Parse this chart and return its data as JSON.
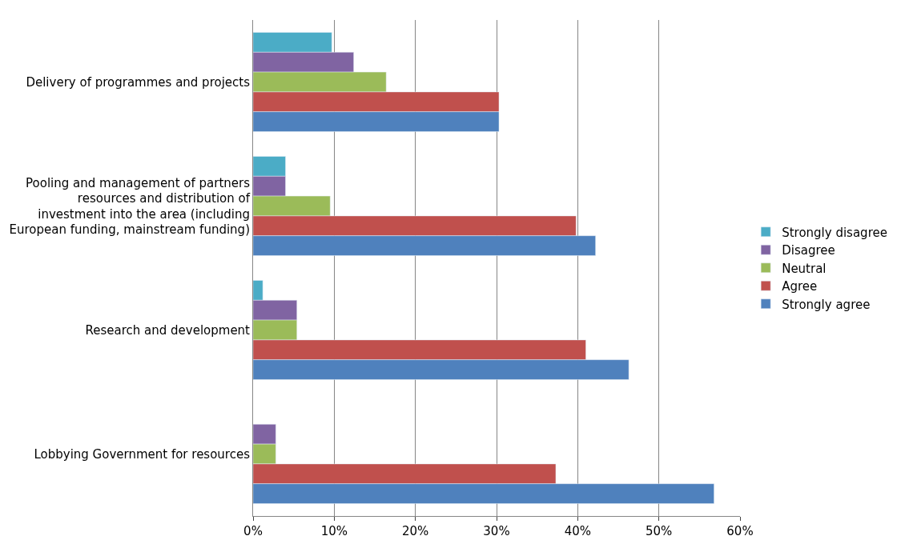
{
  "chart_data": {
    "type": "bar",
    "orientation": "horizontal",
    "categories": [
      "Delivery of programmes and projects",
      "Pooling and management of partners resources and distribution of investment into the area (including European funding, mainstream funding)",
      "Research and development",
      "Lobbying Government for resources"
    ],
    "series": [
      {
        "name": "Strongly disagree",
        "color": "#4bacc6",
        "values": [
          9.7,
          4,
          1.2,
          null
        ]
      },
      {
        "name": "Disagree",
        "color": "#8064a2",
        "values": [
          12.4,
          4,
          5.4,
          2.8
        ]
      },
      {
        "name": "Neutral",
        "color": "#9bbb59",
        "values": [
          16.4,
          9.5,
          5.4,
          2.8
        ]
      },
      {
        "name": "Agree",
        "color": "#c0504d",
        "values": [
          30.3,
          39.8,
          41,
          37.3
        ]
      },
      {
        "name": "Strongly agree",
        "color": "#4f81bd",
        "values": [
          30.3,
          42.2,
          46.3,
          56.8
        ]
      }
    ],
    "xlim": [
      0,
      60
    ],
    "xticks": [
      {
        "value": 0,
        "label": "0%"
      },
      {
        "value": 10,
        "label": "10%"
      },
      {
        "value": 20,
        "label": "20%"
      },
      {
        "value": 30,
        "label": "30%"
      },
      {
        "value": 40,
        "label": "40%"
      },
      {
        "value": 50,
        "label": "50%"
      },
      {
        "value": 60,
        "label": "60%"
      }
    ],
    "grid": "x",
    "legend": "right"
  }
}
